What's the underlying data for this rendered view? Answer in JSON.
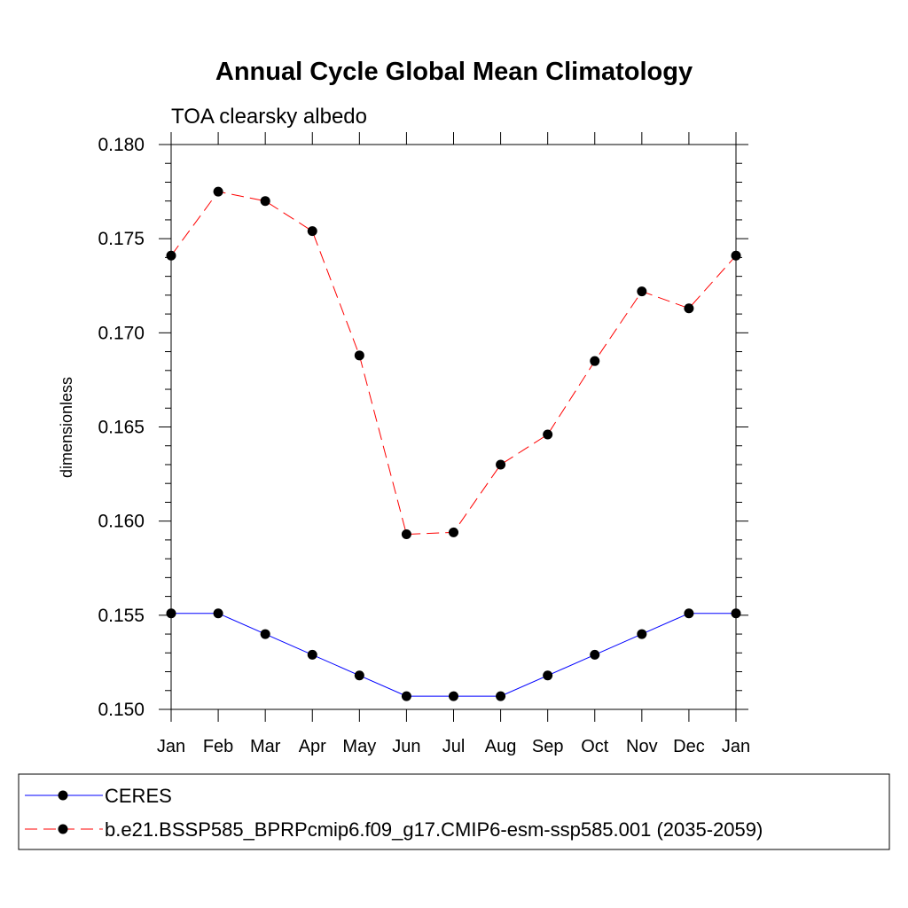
{
  "chart_data": {
    "type": "line",
    "title": "Annual Cycle Global Mean Climatology",
    "subtitle": "TOA clearsky albedo",
    "ylabel": "dimensionless",
    "xlabel": "",
    "categories": [
      "Jan",
      "Feb",
      "Mar",
      "Apr",
      "May",
      "Jun",
      "Jul",
      "Aug",
      "Sep",
      "Oct",
      "Nov",
      "Dec",
      "Jan"
    ],
    "ylim": [
      0.15,
      0.18
    ],
    "yticks": [
      "0.150",
      "0.155",
      "0.160",
      "0.165",
      "0.170",
      "0.175",
      "0.180"
    ],
    "grid": false,
    "legend_position": "bottom",
    "series": [
      {
        "name": "CERES",
        "color": "#0000ff",
        "line_style": "solid",
        "marker": "filled-circle",
        "values": [
          0.1551,
          0.1551,
          0.154,
          0.1529,
          0.1518,
          0.1507,
          0.1507,
          0.1507,
          0.1518,
          0.1529,
          0.154,
          0.1551,
          0.1551
        ]
      },
      {
        "name": "b.e21.BSSP585_BPRPcmip6.f09_g17.CMIP6-esm-ssp585.001 (2035-2059)",
        "color": "#ff0000",
        "line_style": "dashed",
        "marker": "filled-circle",
        "values": [
          0.1741,
          0.1775,
          0.177,
          0.1754,
          0.1688,
          0.1593,
          0.1594,
          0.163,
          0.1646,
          0.1685,
          0.1722,
          0.1713,
          0.1741
        ]
      }
    ]
  }
}
